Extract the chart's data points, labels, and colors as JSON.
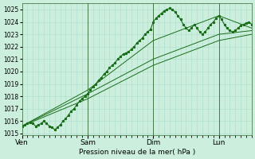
{
  "title": "",
  "xlabel": "Pression niveau de la mer( hPa )",
  "ylabel": "",
  "bg_color": "#cceedd",
  "grid_color": "#aaddcc",
  "line_color": "#1a6e1a",
  "marker_color": "#1a6e1a",
  "ylim": [
    1015,
    1025.5
  ],
  "yticks": [
    1015,
    1016,
    1017,
    1018,
    1019,
    1020,
    1021,
    1022,
    1023,
    1024,
    1025
  ],
  "day_labels": [
    "Ven",
    "Sam",
    "Dim",
    "Lun"
  ],
  "day_positions": [
    0,
    48,
    96,
    144
  ],
  "xlim": [
    0,
    168
  ],
  "series": {
    "main": {
      "x": [
        0,
        2,
        4,
        6,
        8,
        10,
        12,
        14,
        16,
        18,
        20,
        22,
        24,
        26,
        28,
        30,
        32,
        34,
        36,
        38,
        40,
        42,
        44,
        46,
        48,
        50,
        52,
        54,
        56,
        58,
        60,
        62,
        64,
        66,
        68,
        70,
        72,
        74,
        76,
        78,
        80,
        82,
        84,
        86,
        88,
        90,
        92,
        94,
        96,
        98,
        100,
        102,
        104,
        106,
        108,
        110,
        112,
        114,
        116,
        118,
        120,
        122,
        124,
        126,
        128,
        130,
        132,
        134,
        136,
        138,
        140,
        142,
        144,
        146,
        148,
        150,
        152,
        154,
        156,
        158,
        160,
        162,
        164,
        166,
        168
      ],
      "y": [
        1015.6,
        1015.7,
        1015.8,
        1015.9,
        1015.8,
        1015.6,
        1015.7,
        1015.8,
        1016.0,
        1015.8,
        1015.6,
        1015.5,
        1015.3,
        1015.5,
        1015.7,
        1016.0,
        1016.2,
        1016.5,
        1016.8,
        1017.0,
        1017.3,
        1017.6,
        1017.8,
        1018.0,
        1018.2,
        1018.5,
        1018.8,
        1019.0,
        1019.3,
        1019.5,
        1019.8,
        1020.0,
        1020.3,
        1020.5,
        1020.7,
        1021.0,
        1021.2,
        1021.4,
        1021.5,
        1021.6,
        1021.8,
        1022.0,
        1022.3,
        1022.5,
        1022.7,
        1023.0,
        1023.2,
        1023.4,
        1024.0,
        1024.3,
        1024.5,
        1024.7,
        1024.9,
        1025.0,
        1025.1,
        1025.0,
        1024.8,
        1024.5,
        1024.2,
        1023.8,
        1023.5,
        1023.3,
        1023.5,
        1023.8,
        1023.5,
        1023.2,
        1023.0,
        1023.2,
        1023.5,
        1023.8,
        1024.0,
        1024.3,
        1024.5,
        1024.2,
        1023.8,
        1023.5,
        1023.3,
        1023.2,
        1023.3,
        1023.5,
        1023.7,
        1023.8,
        1023.9,
        1024.0,
        1023.8
      ]
    },
    "lower1": {
      "x": [
        0,
        48,
        96,
        144,
        168
      ],
      "y": [
        1015.6,
        1018.2,
        1021.0,
        1023.0,
        1023.3
      ]
    },
    "lower2": {
      "x": [
        0,
        48,
        96,
        144,
        168
      ],
      "y": [
        1015.6,
        1017.8,
        1020.5,
        1022.5,
        1023.0
      ]
    },
    "upper1": {
      "x": [
        0,
        48,
        96,
        144,
        168
      ],
      "y": [
        1015.6,
        1018.5,
        1022.5,
        1024.5,
        1023.5
      ]
    }
  }
}
